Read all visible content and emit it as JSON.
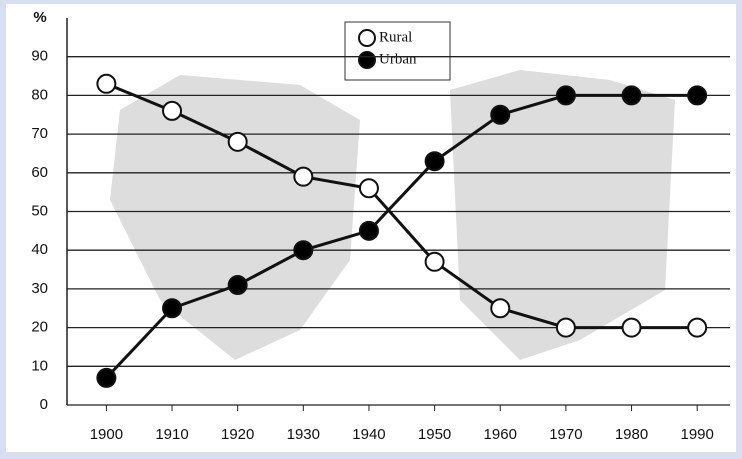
{
  "chart_data": {
    "type": "line",
    "y_label": "%",
    "x": [
      1900,
      1910,
      1920,
      1930,
      1940,
      1950,
      1960,
      1970,
      1980,
      1990
    ],
    "series": [
      {
        "name": "Rural",
        "color": "#ffffff",
        "values": [
          83,
          76,
          68,
          59,
          56,
          37,
          25,
          20,
          20,
          20
        ]
      },
      {
        "name": "Urban",
        "color": "#000000",
        "values": [
          7,
          25,
          31,
          40,
          45,
          63,
          75,
          80,
          80,
          80
        ]
      }
    ],
    "xlim": [
      1894,
      1995
    ],
    "xticks": [
      1900,
      1910,
      1920,
      1930,
      1940,
      1950,
      1960,
      1970,
      1980,
      1990
    ],
    "ylim": [
      0,
      100
    ],
    "yticks": [
      0,
      10,
      20,
      30,
      40,
      50,
      60,
      70,
      80,
      90
    ],
    "grid": true,
    "legend": "top"
  }
}
